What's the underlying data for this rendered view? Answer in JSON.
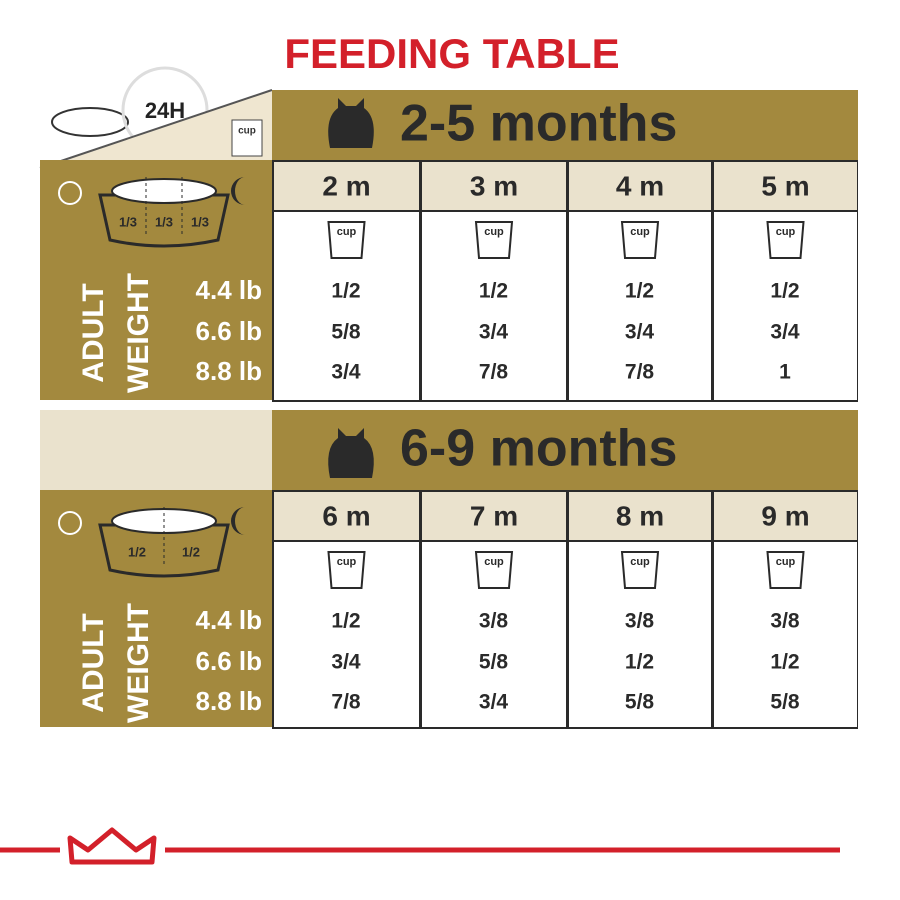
{
  "title": "FEEDING TABLE",
  "header": {
    "duration": "24H",
    "cup": "cup"
  },
  "sections": [
    {
      "age": "2-5 months",
      "portions": [
        "1/3",
        "1/3",
        "1/3"
      ],
      "side_label": [
        "ADULT",
        "WEIGHT"
      ],
      "weights": [
        "4.4 lb",
        "6.6 lb",
        "8.8 lb"
      ],
      "months": [
        "2 m",
        "3 m",
        "4 m",
        "5 m"
      ],
      "rows": [
        [
          "1/2",
          "1/2",
          "1/2",
          "1/2"
        ],
        [
          "5/8",
          "3/4",
          "3/4",
          "3/4"
        ],
        [
          "3/4",
          "7/8",
          "7/8",
          "1"
        ]
      ]
    },
    {
      "age": "6-9 months",
      "portions": [
        "1/2",
        "1/2"
      ],
      "side_label": [
        "ADULT",
        "WEIGHT"
      ],
      "weights": [
        "4.4 lb",
        "6.6 lb",
        "8.8 lb"
      ],
      "months": [
        "6 m",
        "7 m",
        "8 m",
        "9 m"
      ],
      "rows": [
        [
          "1/2",
          "3/8",
          "3/8",
          "3/8"
        ],
        [
          "3/4",
          "5/8",
          "1/2",
          "1/2"
        ],
        [
          "7/8",
          "3/4",
          "5/8",
          "5/8"
        ]
      ]
    }
  ]
}
